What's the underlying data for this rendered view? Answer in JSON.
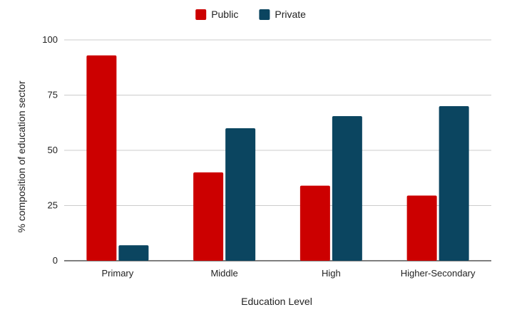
{
  "chart_data": {
    "type": "bar",
    "categories": [
      "Primary",
      "Middle",
      "High",
      "Higher-Secondary"
    ],
    "series": [
      {
        "name": "Public",
        "values": [
          93,
          40,
          34,
          29.5
        ],
        "color": "#cc0000"
      },
      {
        "name": "Private",
        "values": [
          7,
          60,
          65.5,
          70
        ],
        "color": "#0b4560"
      }
    ],
    "title": "",
    "xlabel": "Education Level",
    "ylabel": "% composition of education sector",
    "ylim": [
      0,
      100
    ],
    "yticks": [
      0,
      25,
      50,
      75,
      100
    ],
    "grid": true,
    "legend_position": "top-center"
  }
}
